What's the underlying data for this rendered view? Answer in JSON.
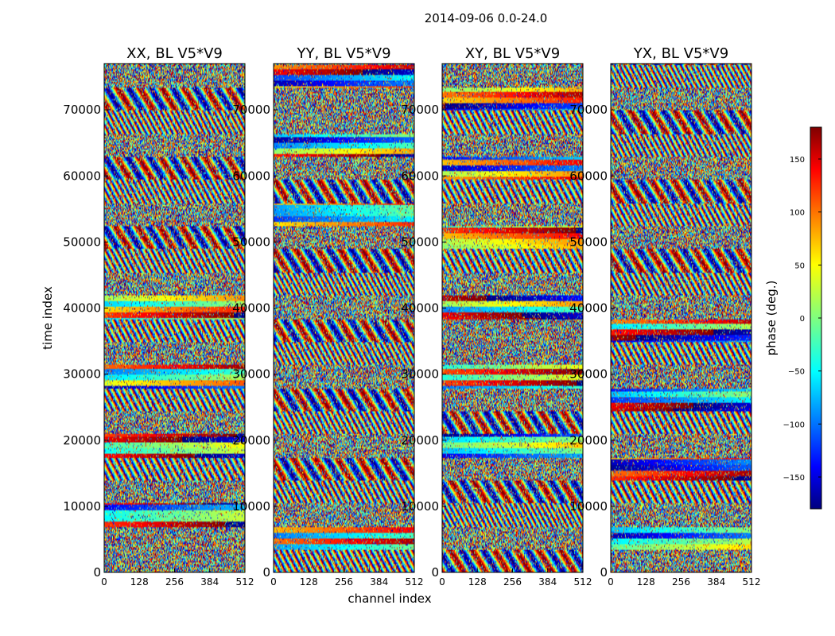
{
  "chart_data": {
    "type": "heatmap",
    "title": "2014-09-06 0.0-24.0",
    "xlabel": "channel index",
    "ylabel": "time index",
    "xlim": [
      0,
      512
    ],
    "ylim": [
      0,
      77000
    ],
    "x_ticks": [
      "0",
      "128",
      "256",
      "384",
      "512"
    ],
    "x_tick_values": [
      0,
      128,
      256,
      384,
      512
    ],
    "y_ticks": [
      "0",
      "10000",
      "20000",
      "30000",
      "40000",
      "50000",
      "60000",
      "70000"
    ],
    "y_tick_values": [
      0,
      10000,
      20000,
      30000,
      40000,
      50000,
      60000,
      70000
    ],
    "panels": [
      {
        "title": "XX, BL V5*V9",
        "polarization": "XX"
      },
      {
        "title": "YY, BL V5*V9",
        "polarization": "YY"
      },
      {
        "title": "XY, BL V5*V9",
        "polarization": "XY"
      },
      {
        "title": "YX, BL V5*V9",
        "polarization": "YX"
      }
    ],
    "colorbar": {
      "label": "phase (deg.)",
      "range": [
        -180,
        180
      ],
      "colormap": "jet",
      "ticks": [
        "−150",
        "−100",
        "−50",
        "0",
        "50",
        "100",
        "150"
      ],
      "tick_values": [
        -150,
        -100,
        -50,
        0,
        50,
        100,
        150
      ]
    }
  }
}
